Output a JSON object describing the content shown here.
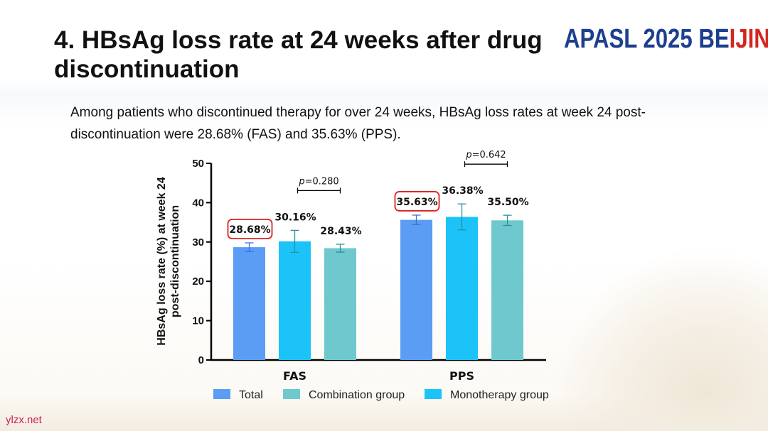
{
  "title": "4. HBsAg loss rate at 24 weeks after drug discontinuation",
  "logo": {
    "part1": "APASL 2025 BE",
    "part2": "IJING"
  },
  "subtitle": "Among patients who discontinued therapy for over 24 weeks, HBsAg loss rates at week 24 post-discontinuation were 28.68% (FAS) and 35.63% (PPS).",
  "watermark": "ylzx.net",
  "colors": {
    "total": "#5b9cf5",
    "monotherapy": "#1cc3f8",
    "combination": "#6ec8cd",
    "highlight": "#e02020",
    "error_total": "#3d6fe0",
    "error_other": "#2a8fa0"
  },
  "chart_data": {
    "type": "bar",
    "title": "",
    "ylabel": "HBsAg loss rate (%) at week 24 post-discontinuation",
    "xlabel": "",
    "ylim": [
      0,
      50
    ],
    "yticks": [
      "0",
      "10",
      "20",
      "30",
      "40",
      "50"
    ],
    "categories": [
      "FAS",
      "PPS"
    ],
    "series": [
      {
        "name": "Total",
        "values": [
          28.68,
          35.63
        ],
        "labels": [
          "28.68%",
          "35.63%"
        ],
        "errors": [
          1.1,
          1.2
        ],
        "highlighted": true
      },
      {
        "name": "Monotherapy group",
        "values": [
          30.16,
          36.38
        ],
        "labels": [
          "30.16%",
          "36.38%"
        ],
        "errors": [
          2.8,
          3.3
        ]
      },
      {
        "name": "Combination group",
        "values": [
          28.43,
          35.5
        ],
        "labels": [
          "28.43%",
          "35.50%"
        ],
        "errors": [
          1.0,
          1.3
        ]
      }
    ],
    "legend_order": [
      "Total",
      "Combination group",
      "Monotherapy group"
    ],
    "pvalues": [
      {
        "category": "FAS",
        "text": "=0.280"
      },
      {
        "category": "PPS",
        "text": "=0.642"
      }
    ],
    "p_symbol": "p"
  }
}
